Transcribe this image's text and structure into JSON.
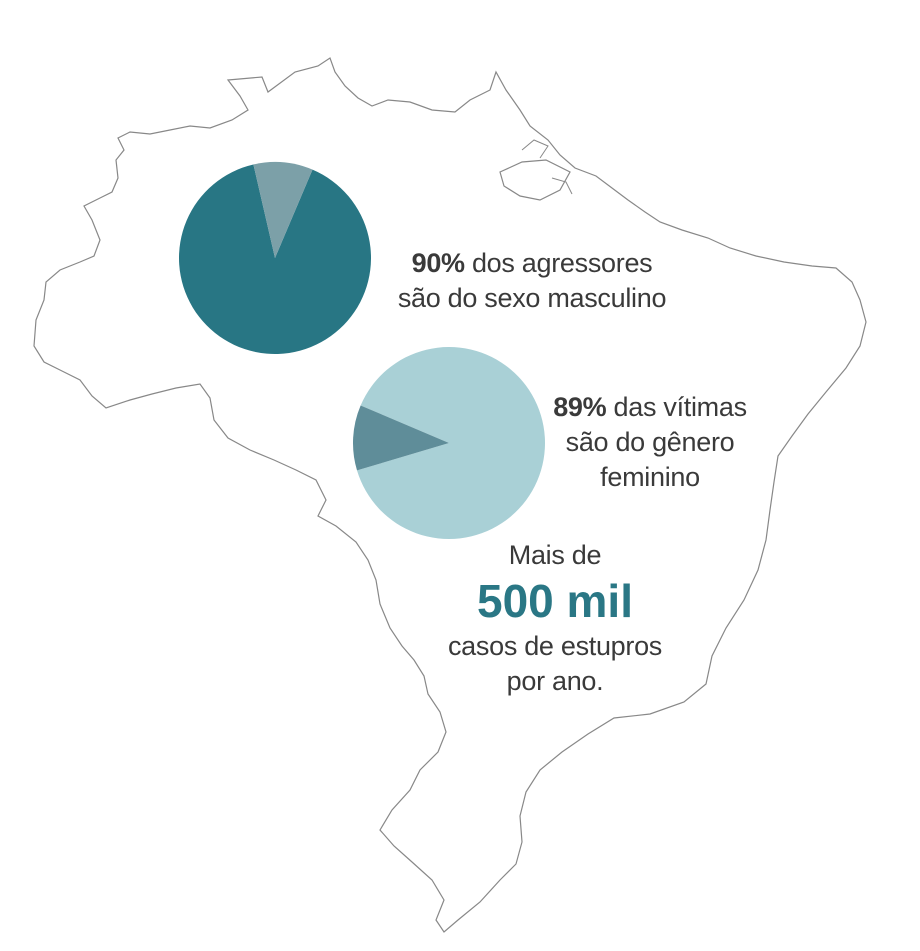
{
  "colors": {
    "outline": "#888888",
    "accent": "#2a7785"
  },
  "chart_data": [
    {
      "type": "pie",
      "slices": [
        {
          "label": "dos agressores são do sexo masculino",
          "value": 90,
          "color": "#287684"
        },
        {
          "label": "",
          "value": 10,
          "color": "#7ca0a8"
        }
      ],
      "annotation": {
        "value": "90%",
        "text_line1": "dos agressores",
        "text_line2": "são do sexo masculino"
      }
    },
    {
      "type": "pie",
      "slices": [
        {
          "label": "das vítimas são do gênero feminino",
          "value": 89,
          "color": "#a9d0d6"
        },
        {
          "label": "",
          "value": 11,
          "color": "#5f8d99"
        }
      ],
      "annotation": {
        "value": "89%",
        "text_line1": "das vítimas",
        "text_line2": "são do gênero",
        "text_line3": "feminino"
      }
    }
  ],
  "callout": {
    "prefix": "Mais de",
    "value": "500 mil",
    "line1": "casos de estupros",
    "line2": "por ano."
  }
}
